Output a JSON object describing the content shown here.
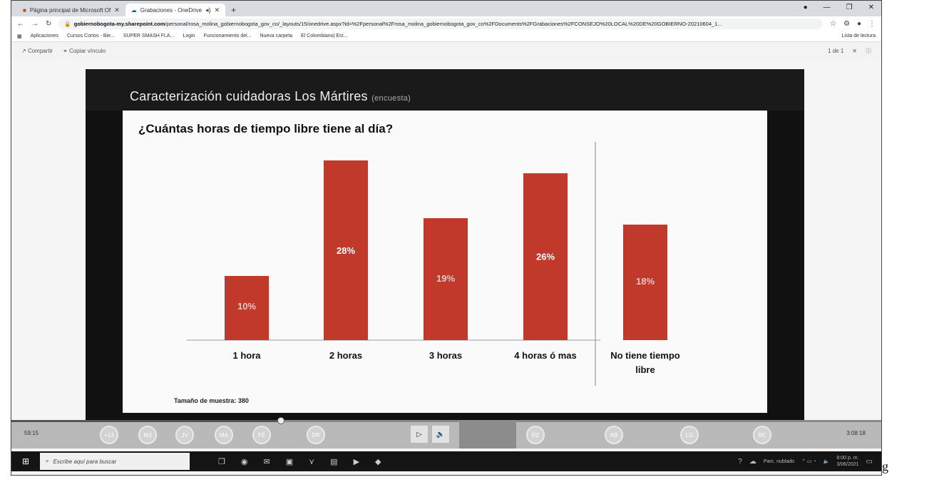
{
  "browser": {
    "tabs": [
      {
        "label": "Página principal de Microsoft Of",
        "active": false
      },
      {
        "label": "Grabaciones - OneDrive",
        "active": true
      }
    ],
    "url_host": "gobiernobogota-my.sharepoint.com",
    "url_path": "/personal/rosa_molina_gobiernobogota_gov_co/_layouts/15/onedrive.aspx?id=%2Fpersonal%2Frosa_molina_gobiernobogota_gov_co%2FDocuments%2FGrabaciones%2FCONSEJO%20LOCAL%20DE%20GOBIERNO-20210604_1...",
    "bookmarks": [
      "Aplicaciones",
      "Cursos Cortos - Bie...",
      "SUPER SMASH FLA...",
      "Login",
      "Funcionamiento del...",
      "Nueva carpeta",
      "El Colombiano| Est..."
    ],
    "reading_list": "Lista de lectura"
  },
  "viewer": {
    "share": "Compartir",
    "copy_link": "Copiar vínculo",
    "page_count": "1 de 1"
  },
  "slide": {
    "title": "Caracterización cuidadoras Los Mártires",
    "title_sub": "(encuesta)",
    "sample": "Tamaño de muestra: 380"
  },
  "chart_data": {
    "type": "bar",
    "title": "¿Cuántas horas de tiempo libre tiene al día?",
    "categories": [
      "1 hora",
      "2 horas",
      "3 horas",
      "4 horas ó mas",
      "No tiene tiempo libre"
    ],
    "values": [
      10,
      28,
      19,
      26,
      18
    ],
    "data_labels": [
      "10%",
      "28%",
      "19%",
      "26%",
      "18%"
    ],
    "bar_color": "#c0392b",
    "label_colors": [
      "#e5c7c4",
      "#ffffff",
      "#e5c7c4",
      "#ffffff",
      "#e5c7c4"
    ],
    "ylim": [
      0,
      30
    ]
  },
  "player": {
    "elapsed": "59:15",
    "duration": "3:08:18",
    "progress": 0.31,
    "participants": [
      "+13",
      "MJ",
      "JV",
      "MA",
      "FE",
      "DR",
      "RZ",
      "AB",
      "LG",
      "RC"
    ]
  },
  "taskbar": {
    "search_placeholder": "Escribe aquí para buscar",
    "tray_text": "Parc. nublado",
    "clock_time": "8:00 p. m.",
    "clock_date": "3/06/2021"
  },
  "margin_glyph": "g"
}
